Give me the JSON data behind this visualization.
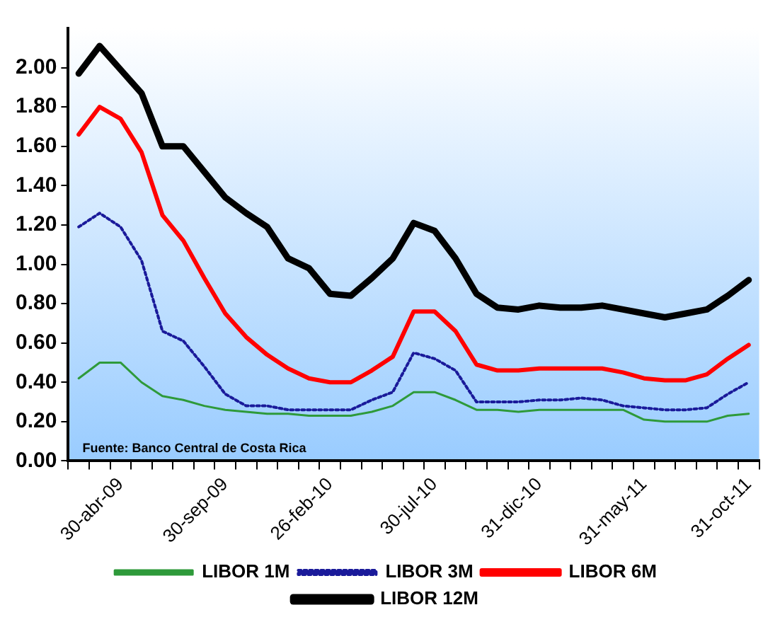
{
  "chart_data": {
    "type": "line",
    "categories": [
      null,
      null,
      "30-abr-09",
      null,
      null,
      null,
      null,
      "30-sep-09",
      null,
      null,
      null,
      null,
      "26-feb-10",
      null,
      null,
      null,
      null,
      "30-jul-10",
      null,
      null,
      null,
      null,
      "31-dic-10",
      null,
      null,
      null,
      null,
      "31-may-11",
      null,
      null,
      null,
      null,
      "31-oct-11"
    ],
    "series": [
      {
        "name": "LIBOR 1M",
        "color": "#2e9a3a",
        "line_style": "solid",
        "values": [
          0.42,
          0.5,
          0.5,
          0.4,
          0.33,
          0.31,
          0.28,
          0.26,
          0.25,
          0.24,
          0.24,
          0.23,
          0.23,
          0.23,
          0.25,
          0.28,
          0.35,
          0.35,
          0.31,
          0.26,
          0.26,
          0.25,
          0.26,
          0.26,
          0.26,
          0.26,
          0.26,
          0.21,
          0.2,
          0.2,
          0.2,
          0.23,
          0.24
        ]
      },
      {
        "name": "LIBOR 3M",
        "color": "#1a1a9a",
        "line_style": "dotted",
        "values": [
          1.19,
          1.26,
          1.19,
          1.02,
          0.66,
          0.61,
          0.48,
          0.34,
          0.28,
          0.28,
          0.26,
          0.26,
          0.26,
          0.26,
          0.31,
          0.35,
          0.55,
          0.52,
          0.46,
          0.3,
          0.3,
          0.3,
          0.31,
          0.31,
          0.32,
          0.31,
          0.28,
          0.27,
          0.26,
          0.26,
          0.27,
          0.34,
          0.4
        ]
      },
      {
        "name": "LIBOR 6M",
        "color": "#ff0000",
        "line_style": "solid",
        "values": [
          1.66,
          1.8,
          1.74,
          1.57,
          1.25,
          1.12,
          0.93,
          0.75,
          0.63,
          0.54,
          0.47,
          0.42,
          0.4,
          0.4,
          0.46,
          0.53,
          0.76,
          0.76,
          0.66,
          0.49,
          0.46,
          0.46,
          0.47,
          0.47,
          0.47,
          0.47,
          0.45,
          0.42,
          0.41,
          0.41,
          0.44,
          0.52,
          0.59
        ]
      },
      {
        "name": "LIBOR 12M",
        "color": "#000000",
        "line_style": "solid",
        "values": [
          1.97,
          2.11,
          1.99,
          1.87,
          1.6,
          1.6,
          1.47,
          1.34,
          1.26,
          1.19,
          1.03,
          0.98,
          0.85,
          0.84,
          0.93,
          1.03,
          1.21,
          1.17,
          1.03,
          0.85,
          0.78,
          0.77,
          0.79,
          0.78,
          0.78,
          0.79,
          0.77,
          0.75,
          0.73,
          0.75,
          0.77,
          0.84,
          0.92
        ]
      }
    ],
    "ylim": [
      0,
      2.2
    ],
    "yticks": [
      {
        "value": 0,
        "label": "0.00"
      },
      {
        "value": 0.2,
        "label": "0.20"
      },
      {
        "value": 0.4,
        "label": "0.40"
      },
      {
        "value": 0.6,
        "label": "0.60"
      },
      {
        "value": 0.8,
        "label": "0.80"
      },
      {
        "value": 1,
        "label": "1.00"
      },
      {
        "value": 1.2,
        "label": "1.20"
      },
      {
        "value": 1.4,
        "label": "1.40"
      },
      {
        "value": 1.6,
        "label": "1.60"
      },
      {
        "value": 1.8,
        "label": "1.80"
      },
      {
        "value": 2,
        "label": "2.00"
      }
    ],
    "grid": false,
    "legend": "bottom",
    "marker": "none",
    "annotations": [
      "Fuente: Banco Central de Costa Rica"
    ]
  }
}
